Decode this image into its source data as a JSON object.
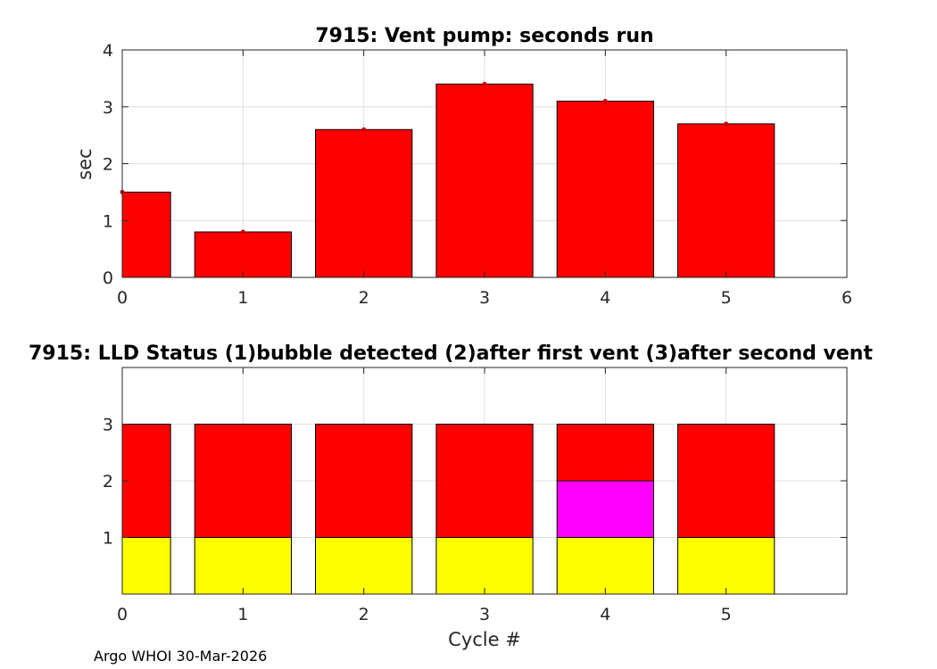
{
  "chart_data": [
    {
      "type": "bar",
      "title": "7915: Vent pump: seconds run",
      "xlabel": "",
      "ylabel": "sec",
      "x": [
        0,
        1,
        2,
        3,
        4,
        5
      ],
      "values": [
        1.5,
        0.8,
        2.6,
        3.4,
        3.1,
        2.7
      ],
      "xlim": [
        0,
        6
      ],
      "ylim": [
        0,
        4
      ],
      "xticks": [
        "0",
        "1",
        "2",
        "3",
        "4",
        "5",
        "6"
      ],
      "yticks": [
        "0",
        "1",
        "2",
        "3",
        "4"
      ],
      "grid": true,
      "bar_color": "#ff0000",
      "marker_color": "#cc0000"
    },
    {
      "type": "bar",
      "title": "7915: LLD Status   (1)bubble detected   (2)after first vent  (3)after second vent",
      "xlabel": "Cycle #",
      "ylabel": "",
      "x": [
        0,
        1,
        2,
        3,
        4,
        5
      ],
      "stacked": true,
      "series": [
        {
          "values": [
            1,
            1,
            1,
            1,
            1,
            1
          ],
          "color": "#ffff00"
        },
        {
          "values": [
            0,
            0,
            0,
            0,
            1,
            0
          ],
          "color": "#ff00ff"
        },
        {
          "values": [
            2,
            2,
            2,
            2,
            1,
            2
          ],
          "color": "#ff0000"
        }
      ],
      "xlim": [
        0,
        6
      ],
      "ylim": [
        0,
        4
      ],
      "xticks": [
        "0",
        "1",
        "2",
        "3",
        "4",
        "5"
      ],
      "yticks": [
        "1",
        "2",
        "3"
      ],
      "grid": true
    }
  ],
  "footer": "Argo WHOI 30-Mar-2026"
}
